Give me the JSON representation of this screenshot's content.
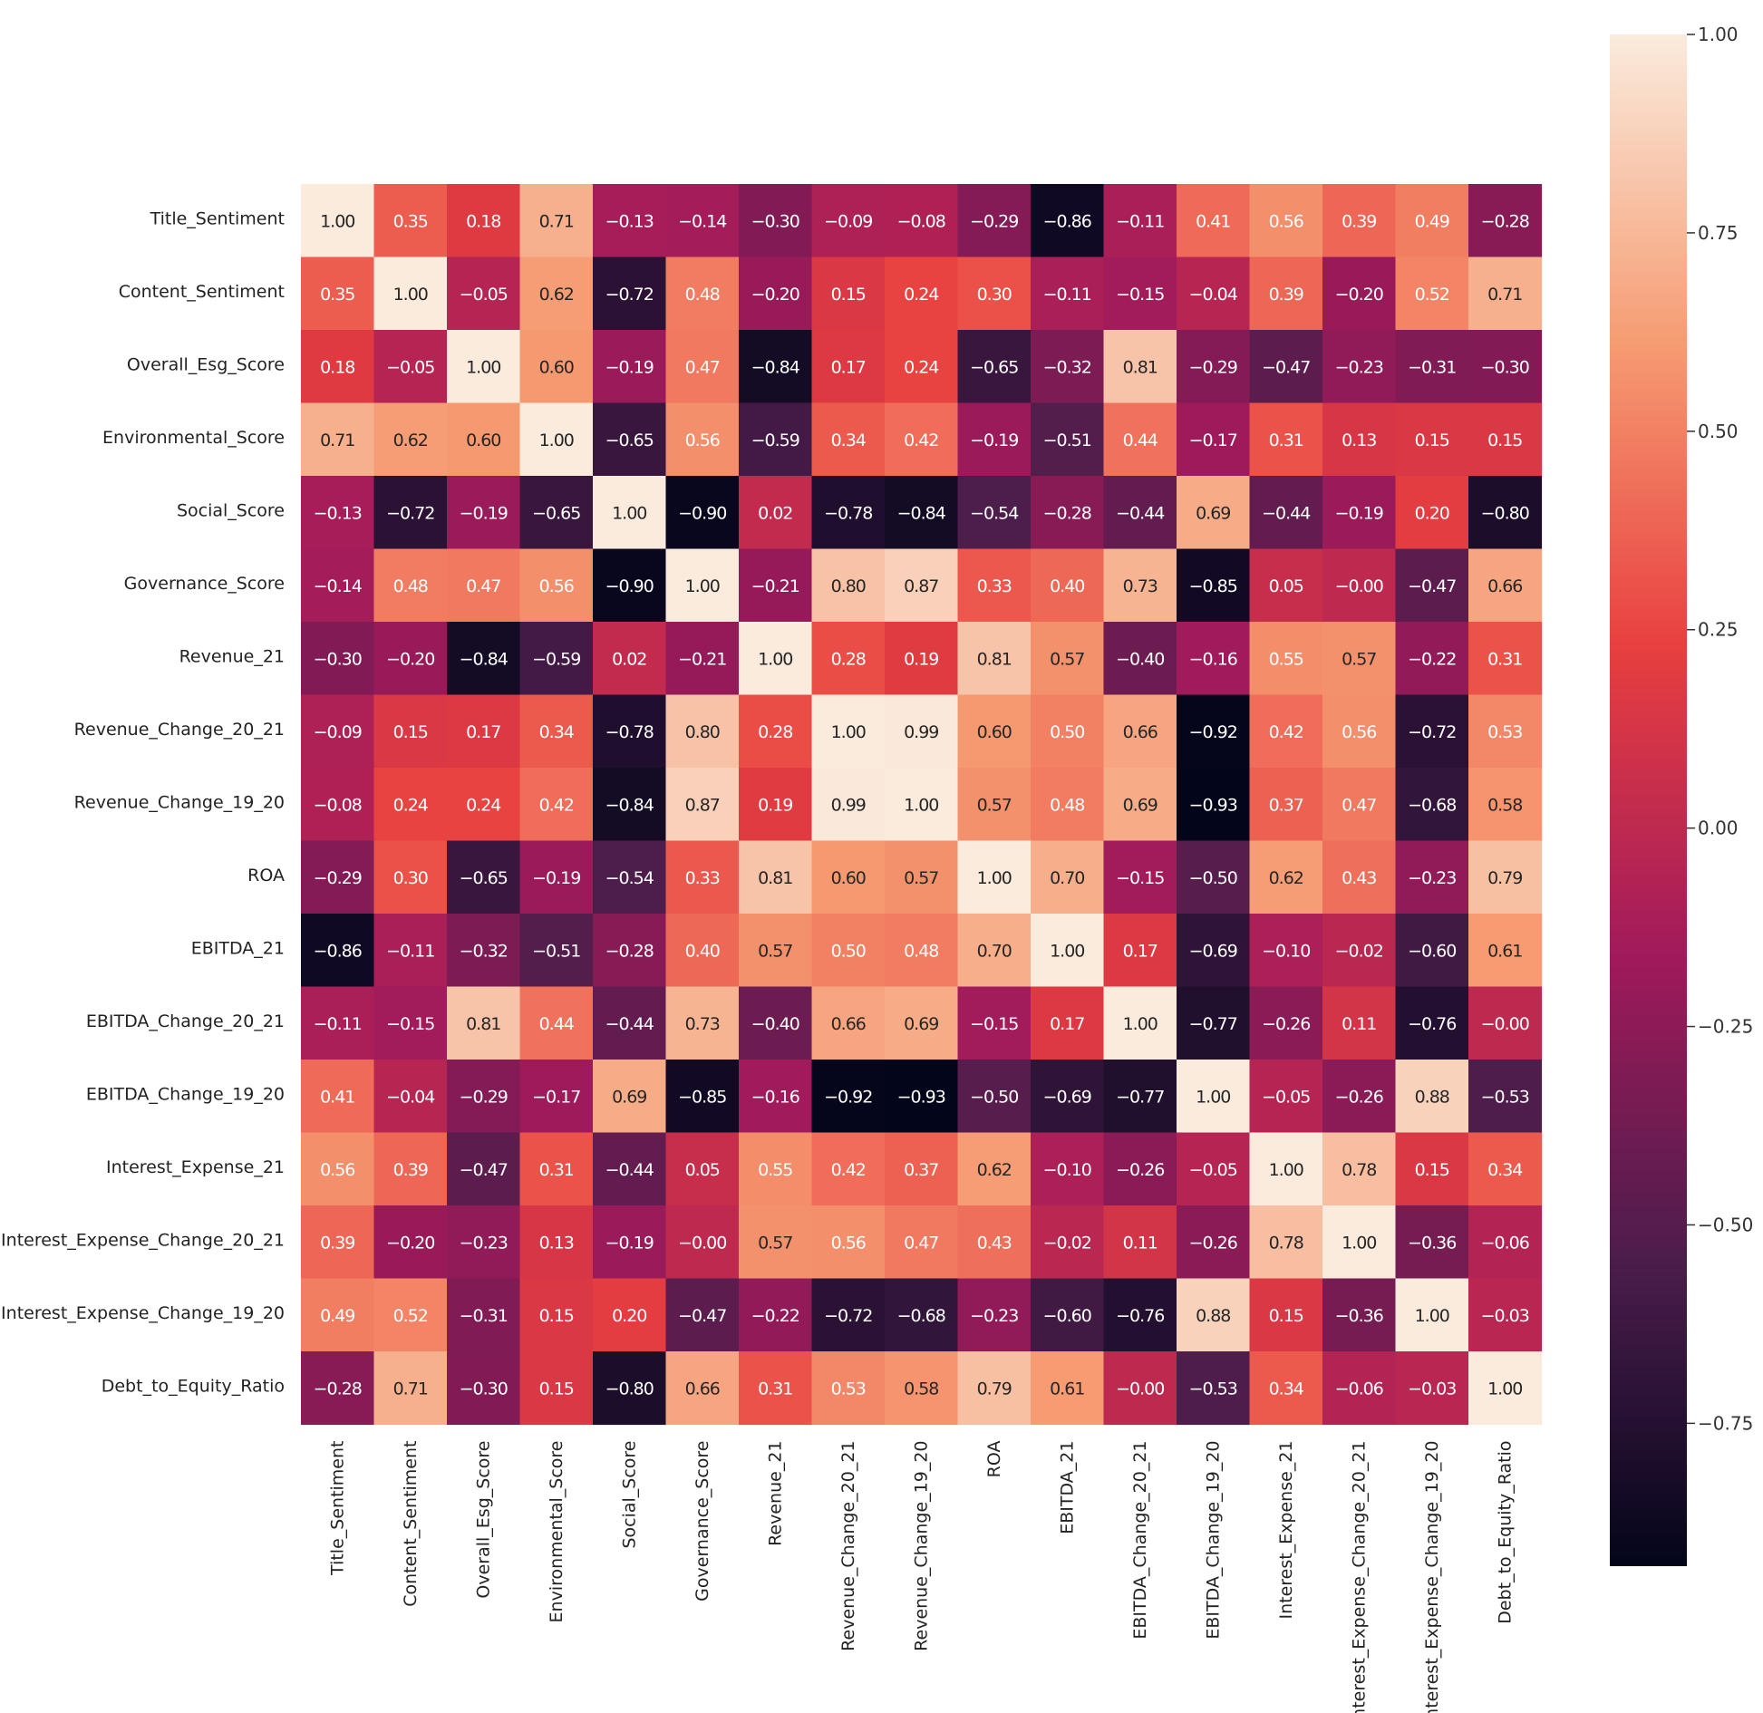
{
  "chart_data": {
    "type": "heatmap",
    "title": "",
    "xlabel": "",
    "ylabel": "",
    "labels": [
      "Title_Sentiment",
      "Content_Sentiment",
      "Overall_Esg_Score",
      "Environmental_Score",
      "Social_Score",
      "Governance_Score",
      "Revenue_21",
      "Revenue_Change_20_21",
      "Revenue_Change_19_20",
      "ROA",
      "EBITDA_21",
      "EBITDA_Change_20_21",
      "EBITDA_Change_19_20",
      "Interest_Expense_21",
      "Interest_Expense_Change_20_21",
      "Interest_Expense_Change_19_20",
      "Debt_to_Equity_Ratio"
    ],
    "matrix": [
      [
        1.0,
        0.35,
        0.18,
        0.71,
        -0.13,
        -0.14,
        -0.3,
        -0.09,
        -0.08,
        -0.29,
        -0.86,
        -0.11,
        0.41,
        0.56,
        0.39,
        0.49,
        -0.28
      ],
      [
        0.35,
        1.0,
        -0.05,
        0.62,
        -0.72,
        0.48,
        -0.2,
        0.15,
        0.24,
        0.3,
        -0.11,
        -0.15,
        -0.04,
        0.39,
        -0.2,
        0.52,
        0.71
      ],
      [
        0.18,
        -0.05,
        1.0,
        0.6,
        -0.19,
        0.47,
        -0.84,
        0.17,
        0.24,
        -0.65,
        -0.32,
        0.81,
        -0.29,
        -0.47,
        -0.23,
        -0.31,
        -0.3
      ],
      [
        0.71,
        0.62,
        0.6,
        1.0,
        -0.65,
        0.56,
        -0.59,
        0.34,
        0.42,
        -0.19,
        -0.51,
        0.44,
        -0.17,
        0.31,
        0.13,
        0.15,
        0.15
      ],
      [
        -0.13,
        -0.72,
        -0.19,
        -0.65,
        1.0,
        -0.9,
        0.02,
        -0.78,
        -0.84,
        -0.54,
        -0.28,
        -0.44,
        0.69,
        -0.44,
        -0.19,
        0.2,
        -0.8
      ],
      [
        -0.14,
        0.48,
        0.47,
        0.56,
        -0.9,
        1.0,
        -0.21,
        0.8,
        0.87,
        0.33,
        0.4,
        0.73,
        -0.85,
        0.05,
        -0.0,
        -0.47,
        0.66
      ],
      [
        -0.3,
        -0.2,
        -0.84,
        -0.59,
        0.02,
        -0.21,
        1.0,
        0.28,
        0.19,
        0.81,
        0.57,
        -0.4,
        -0.16,
        0.55,
        0.57,
        -0.22,
        0.31
      ],
      [
        -0.09,
        0.15,
        0.17,
        0.34,
        -0.78,
        0.8,
        0.28,
        1.0,
        0.99,
        0.6,
        0.5,
        0.66,
        -0.92,
        0.42,
        0.56,
        -0.72,
        0.53
      ],
      [
        -0.08,
        0.24,
        0.24,
        0.42,
        -0.84,
        0.87,
        0.19,
        0.99,
        1.0,
        0.57,
        0.48,
        0.69,
        -0.93,
        0.37,
        0.47,
        -0.68,
        0.58
      ],
      [
        -0.29,
        0.3,
        -0.65,
        -0.19,
        -0.54,
        0.33,
        0.81,
        0.6,
        0.57,
        1.0,
        0.7,
        -0.15,
        -0.5,
        0.62,
        0.43,
        -0.23,
        0.79
      ],
      [
        -0.86,
        -0.11,
        -0.32,
        -0.51,
        -0.28,
        0.4,
        0.57,
        0.5,
        0.48,
        0.7,
        1.0,
        0.17,
        -0.69,
        -0.1,
        -0.02,
        -0.6,
        0.61
      ],
      [
        -0.11,
        -0.15,
        0.81,
        0.44,
        -0.44,
        0.73,
        -0.4,
        0.66,
        0.69,
        -0.15,
        0.17,
        1.0,
        -0.77,
        -0.26,
        0.11,
        -0.76,
        -0.0
      ],
      [
        0.41,
        -0.04,
        -0.29,
        -0.17,
        0.69,
        -0.85,
        -0.16,
        -0.92,
        -0.93,
        -0.5,
        -0.69,
        -0.77,
        1.0,
        -0.05,
        -0.26,
        0.88,
        -0.53
      ],
      [
        0.56,
        0.39,
        -0.47,
        0.31,
        -0.44,
        0.05,
        0.55,
        0.42,
        0.37,
        0.62,
        -0.1,
        -0.26,
        -0.05,
        1.0,
        0.78,
        0.15,
        0.34
      ],
      [
        0.39,
        -0.2,
        -0.23,
        0.13,
        -0.19,
        -0.0,
        0.57,
        0.56,
        0.47,
        0.43,
        -0.02,
        0.11,
        -0.26,
        0.78,
        1.0,
        -0.36,
        -0.06
      ],
      [
        0.49,
        0.52,
        -0.31,
        0.15,
        0.2,
        -0.47,
        -0.22,
        -0.72,
        -0.68,
        -0.23,
        -0.6,
        -0.76,
        0.88,
        0.15,
        -0.36,
        1.0,
        -0.03
      ],
      [
        -0.28,
        0.71,
        -0.3,
        0.15,
        -0.8,
        0.66,
        0.31,
        0.53,
        0.58,
        0.79,
        0.61,
        -0.0,
        -0.53,
        0.34,
        -0.06,
        -0.03,
        1.0
      ]
    ],
    "colorbar": {
      "vmin": -0.93,
      "vmax": 1.0,
      "ticks": [
        1.0,
        0.75,
        0.5,
        0.25,
        0.0,
        -0.25,
        -0.5,
        -0.75
      ],
      "tick_labels": [
        "1.00",
        "0.75",
        "0.50",
        "0.25",
        "0.00",
        "-0.25",
        "-0.50",
        "-0.75"
      ]
    },
    "colormap": {
      "name": "rocket",
      "stops": [
        "#03051a",
        "#4c1d4b",
        "#a11a5b",
        "#e83f3f",
        "#f69c73",
        "#faebdd"
      ]
    }
  }
}
